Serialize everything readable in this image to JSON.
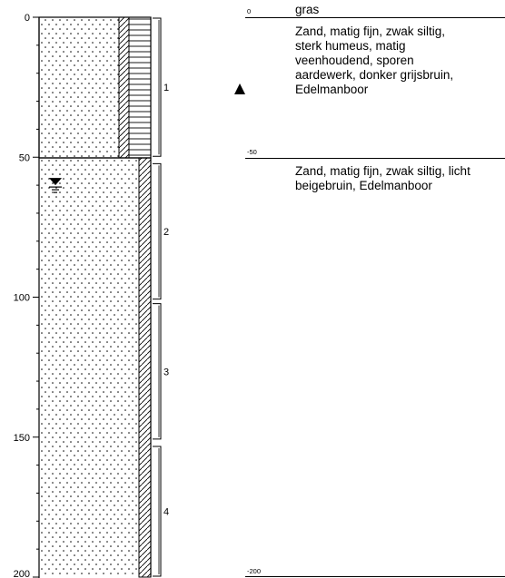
{
  "depth_axis": {
    "ticks": [
      "0",
      "50",
      "100",
      "150",
      "200"
    ],
    "range": [
      0,
      200
    ]
  },
  "samples": [
    {
      "label": "1",
      "from": 0,
      "to": 50
    },
    {
      "label": "2",
      "from": 52,
      "to": 101
    },
    {
      "label": "3",
      "from": 102,
      "to": 151
    },
    {
      "label": "4",
      "from": 153,
      "to": 200
    }
  ],
  "layers": [
    {
      "from": 0,
      "to": 50,
      "lithology": "sand-humous"
    },
    {
      "from": 50,
      "to": 200,
      "lithology": "sand"
    }
  ],
  "water_level_depth": 60,
  "descriptions": [
    {
      "top_marker": "0",
      "lines": [
        "gras"
      ]
    },
    {
      "top_marker": "",
      "lines": [
        "Zand, matig fijn, zwak siltig,",
        "sterk humeus, matig",
        "veenhoudend, sporen",
        "aardewerk, donker grijsbruin,",
        "Edelmanboor"
      ]
    },
    {
      "top_marker": "-50",
      "lines": [
        "Zand, matig fijn, zwak siltig, licht",
        "beigebruin, Edelmanboor"
      ]
    }
  ],
  "bottom_marker": "-200",
  "symbols": {
    "observation": "filled-triangle-icon",
    "groundwater": "groundwater-level-icon"
  }
}
